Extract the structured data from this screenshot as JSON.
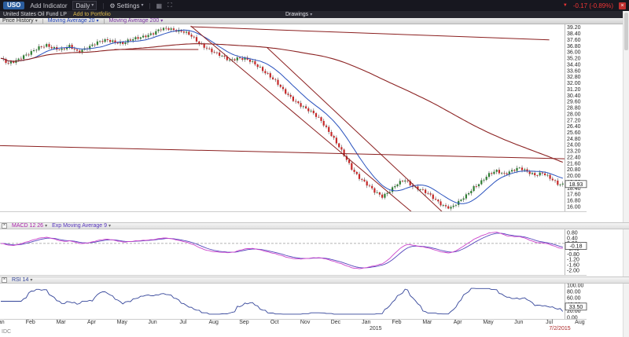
{
  "icons": {
    "chevron_down": "▾",
    "gear": "⚙",
    "close": "×",
    "separator": "|",
    "layout": "▦",
    "expand": "⛶",
    "down_arrow": "▼"
  },
  "toolbar": {
    "symbol": "USO",
    "add_indicator_label": "Add Indicator",
    "timeframe_label": "Daily",
    "settings_label": "Settings",
    "change_text": "-0.17 (-0.89%)"
  },
  "subheader": {
    "fund_name": "United States Oil Fund LP",
    "add_to_portfolio_label": "Add to Portfolio",
    "drawings_label": "Drawings"
  },
  "indicator_bar": {
    "price_history_label": "Price History",
    "ma20_label": "Moving Average 20",
    "ma200_label": "Moving Average 200"
  },
  "panels": {
    "macd": {
      "label": "MACD 12 26",
      "ema_label": "Exp Moving Average 9",
      "last_value": "-0.18"
    },
    "rsi": {
      "label": "RSI 14",
      "last_value": "33.50"
    }
  },
  "footer": {
    "provider": "IDC"
  },
  "colors": {
    "candle_up": "#2e7d32",
    "candle_down": "#c62828",
    "macd_line": "#cc44cc",
    "macd_signal": "#5544bb",
    "rsi_line": "#334499",
    "negative_red": "#ee3535"
  },
  "chart_data": {
    "type": "candlestick",
    "symbol": "USO",
    "title": "United States Oil Fund LP - Daily",
    "price_axis": {
      "max": 39.2,
      "min": 16.0,
      "step": 0.8,
      "last": "18.93"
    },
    "macd_axis": {
      "max": 0.8,
      "min": -2.0,
      "step": 0.4
    },
    "rsi_axis": {
      "max": 100.0,
      "min": 0.0,
      "step": 20.0
    },
    "weekly_closes": [
      35.2,
      34.4,
      34.9,
      35.6,
      36.0,
      36.5,
      36.9,
      36.6,
      36.3,
      36.7,
      36.1,
      36.5,
      36.9,
      37.3,
      37.6,
      37.4,
      37.1,
      37.5,
      37.9,
      38.2,
      38.4,
      38.9,
      39.1,
      38.9,
      38.6,
      38.0,
      37.2,
      36.6,
      35.9,
      35.4,
      35.0,
      35.3,
      35.1,
      34.6,
      34.0,
      33.2,
      32.2,
      31.0,
      30.2,
      29.4,
      28.6,
      28.0,
      27.2,
      25.8,
      24.2,
      22.6,
      21.0,
      19.8,
      18.8,
      17.9,
      17.4,
      18.1,
      18.9,
      19.4,
      18.7,
      18.3,
      17.6,
      16.8,
      16.2,
      15.9,
      16.5,
      17.4,
      18.6,
      19.3,
      20.1,
      20.6,
      20.3,
      20.7,
      20.9,
      20.5,
      20.2,
      20.4,
      19.6,
      18.93
    ],
    "moving_averages": [
      {
        "name": "Moving Average 20",
        "period": 20,
        "color": "#2a52be"
      },
      {
        "name": "Moving Average 200",
        "period": 200,
        "color": "#8b2222"
      }
    ],
    "macd": {
      "fast": 12,
      "slow": 26,
      "signal": 9,
      "last": -0.18
    },
    "rsi": {
      "period": 14,
      "last": 33.5
    },
    "drawing_color": "#8b1f1f",
    "trendlines": [
      {
        "w1": 25,
        "p1": 39.4,
        "w2": 54,
        "p2": 15.3
      },
      {
        "w1": 35,
        "p1": 36.6,
        "w2": 58,
        "p2": 15.3
      },
      {
        "w1": 0,
        "p1": 23.9,
        "w2": 74,
        "p2": 22.2
      },
      {
        "w1": 25,
        "p1": 39.3,
        "w2": 72,
        "p2": 37.6
      },
      {
        "w1": 15,
        "p1": 36.35,
        "w2": 26,
        "p2": 36.35
      }
    ],
    "months": [
      "Jan",
      "Feb",
      "Mar",
      "Apr",
      "May",
      "Jun",
      "Jul",
      "Aug",
      "Sep",
      "Oct",
      "Nov",
      "Dec",
      "Jan",
      "Feb",
      "Mar",
      "Apr",
      "May",
      "Jun",
      "Jul",
      "Aug"
    ],
    "year_label": "2015",
    "year_month_index": 12,
    "current_date": "7/2/2015"
  }
}
